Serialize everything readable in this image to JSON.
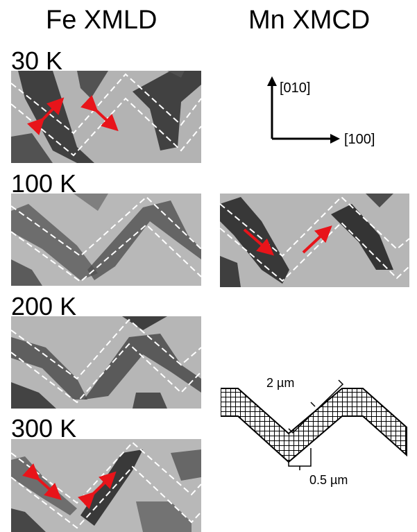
{
  "titles": {
    "fe": "Fe XMLD",
    "mn": "Mn XMCD"
  },
  "temps": [
    "30 K",
    "100 K",
    "200 K",
    "300 K"
  ],
  "axes": {
    "y": "[010]",
    "x": "[100]"
  },
  "schematic": {
    "length_label": "2 µm",
    "width_label": "0.5 µm"
  },
  "colors": {
    "arrow": "#e8141a",
    "dash": "#ffffff",
    "stripe_dark": "#2a2a2a",
    "background": "#b0b0b0"
  }
}
